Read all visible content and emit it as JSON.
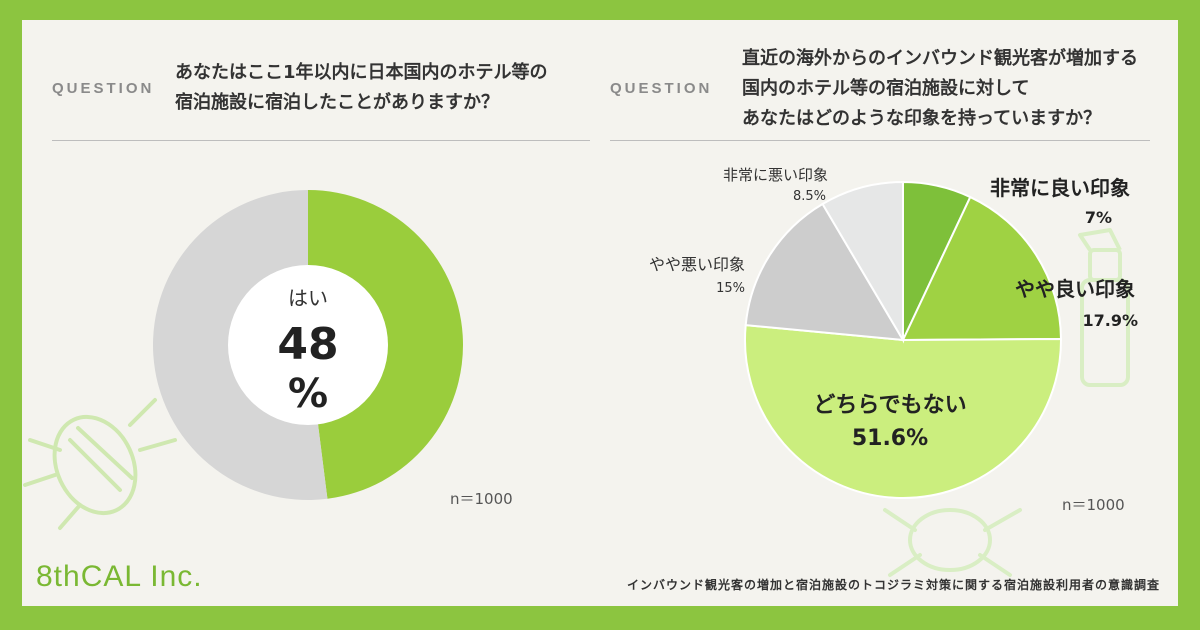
{
  "left": {
    "question_label": "QUESTION",
    "question_lines": [
      "あなたはここ1年以内に日本国内のホテル等の",
      "宿泊施設に宿泊したことがありますか？"
    ],
    "center_label": "はい",
    "center_value": "48",
    "center_unit": "%",
    "n_label": "n＝1000"
  },
  "right": {
    "question_label": "QUESTION",
    "question_lines": [
      "直近の海外からのインバウンド観光客が増加する",
      "国内のホテル等の宿泊施設に対して",
      "あなたはどのような印象を持っていますか？"
    ],
    "n_label": "n＝1000"
  },
  "chart_data": [
    {
      "type": "pie",
      "variant": "donut",
      "categories": [
        "はい",
        ""
      ],
      "values": [
        48,
        52
      ],
      "colors": [
        "#9acd3c",
        "#d6d6d6"
      ]
    },
    {
      "type": "pie",
      "categories": [
        "非常に良い印象",
        "やや良い印象",
        "どちらでもない",
        "やや悪い印象",
        "非常に悪い印象"
      ],
      "values": [
        7,
        17.9,
        51.6,
        15,
        8.5
      ],
      "value_labels": [
        "7%",
        "17.9%",
        "51.6%",
        "15%",
        "8.5%"
      ],
      "colors": [
        "#7ec03a",
        "#9fd243",
        "#cbee7e",
        "#cdcdcd",
        "#e6e7e7"
      ]
    }
  ],
  "logo": "8thCAL Inc.",
  "footer": "インバウンド観光客の増加と宿泊施設のトコジラミ対策に関する宿泊施設利用者の意識調査"
}
